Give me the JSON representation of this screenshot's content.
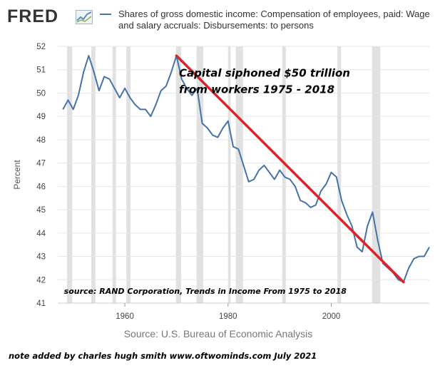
{
  "logo": {
    "text": "FRED",
    "icon": "line-graph-icon"
  },
  "chart_data": {
    "type": "line",
    "title": "",
    "legend_position": "top",
    "series": [
      {
        "name": "Shares of gross domestic income: Compensation of employees, paid: Wage and salary accruals: Disbursements: to persons",
        "color": "#4572a7",
        "x": [
          1948,
          1949,
          1950,
          1951,
          1952,
          1953,
          1954,
          1955,
          1956,
          1957,
          1958,
          1959,
          1960,
          1961,
          1962,
          1963,
          1964,
          1965,
          1966,
          1967,
          1968,
          1969,
          1970,
          1971,
          1972,
          1973,
          1974,
          1975,
          1976,
          1977,
          1978,
          1979,
          1980,
          1981,
          1982,
          1983,
          1984,
          1985,
          1986,
          1987,
          1988,
          1989,
          1990,
          1991,
          1992,
          1993,
          1994,
          1995,
          1996,
          1997,
          1998,
          1999,
          2000,
          2001,
          2002,
          2003,
          2004,
          2005,
          2006,
          2007,
          2008,
          2009,
          2010,
          2011,
          2012,
          2013,
          2014,
          2015,
          2016,
          2017,
          2018,
          2019,
          2020
        ],
        "values": [
          49.3,
          49.7,
          49.3,
          49.9,
          50.9,
          51.6,
          50.9,
          50.1,
          50.7,
          50.6,
          50.2,
          49.8,
          50.2,
          49.8,
          49.5,
          49.3,
          49.3,
          49.0,
          49.5,
          50.1,
          50.3,
          50.9,
          51.6,
          50.6,
          50.2,
          49.9,
          50.2,
          48.7,
          48.5,
          48.2,
          48.1,
          48.5,
          48.8,
          47.7,
          47.6,
          46.9,
          46.2,
          46.3,
          46.7,
          46.9,
          46.6,
          46.3,
          46.7,
          46.4,
          46.3,
          46.0,
          45.4,
          45.3,
          45.1,
          45.2,
          45.8,
          46.1,
          46.6,
          46.4,
          45.4,
          44.8,
          44.3,
          43.4,
          43.2,
          44.3,
          44.9,
          43.7,
          42.7,
          42.5,
          42.3,
          42.0,
          41.9,
          42.5,
          42.9,
          43.0,
          43.0,
          43.4,
          43.5
        ]
      }
    ],
    "x_ticks": [
      1960,
      1980,
      2000
    ],
    "y_ticks": [
      41,
      42,
      43,
      44,
      45,
      46,
      47,
      48,
      49,
      50,
      51,
      52
    ],
    "xlim": [
      1947,
      2019
    ],
    "ylim": [
      41,
      52
    ],
    "ylabel": "Percent",
    "xlabel": "",
    "recessions": [
      [
        1948.8,
        1949.8
      ],
      [
        1953.5,
        1954.3
      ],
      [
        1957.6,
        1958.3
      ],
      [
        1960.3,
        1961.1
      ],
      [
        1969.9,
        1970.9
      ],
      [
        1973.9,
        1975.2
      ],
      [
        1980.0,
        1980.5
      ],
      [
        1981.5,
        1982.9
      ],
      [
        1990.5,
        1991.2
      ],
      [
        2001.2,
        2001.9
      ],
      [
        2007.9,
        2009.5
      ]
    ],
    "trend_line": {
      "from": [
        1970,
        51.6
      ],
      "to": [
        2014,
        41.9
      ],
      "color": "#d9242b"
    },
    "annotations": [
      {
        "text": "Capital siphoned $50 trillion",
        "x": 1970.5,
        "y": 50.7
      },
      {
        "text": "from workers 1975 - 2018",
        "x": 1970.5,
        "y": 50.0
      },
      {
        "text": "source: RAND Corporation, Trends in Income From 1975 to 2018",
        "x": 1948.2,
        "y": 41.4
      }
    ]
  },
  "source_note": "Source: U.S. Bureau of Economic Analysis",
  "footer_note": "note added by charles hugh smith   www.oftwominds.com   July 2021",
  "colors": {
    "line": "#4572a7",
    "trend": "#d9242b",
    "recession": "#e1e1e1",
    "grid": "#e6e6e6"
  }
}
